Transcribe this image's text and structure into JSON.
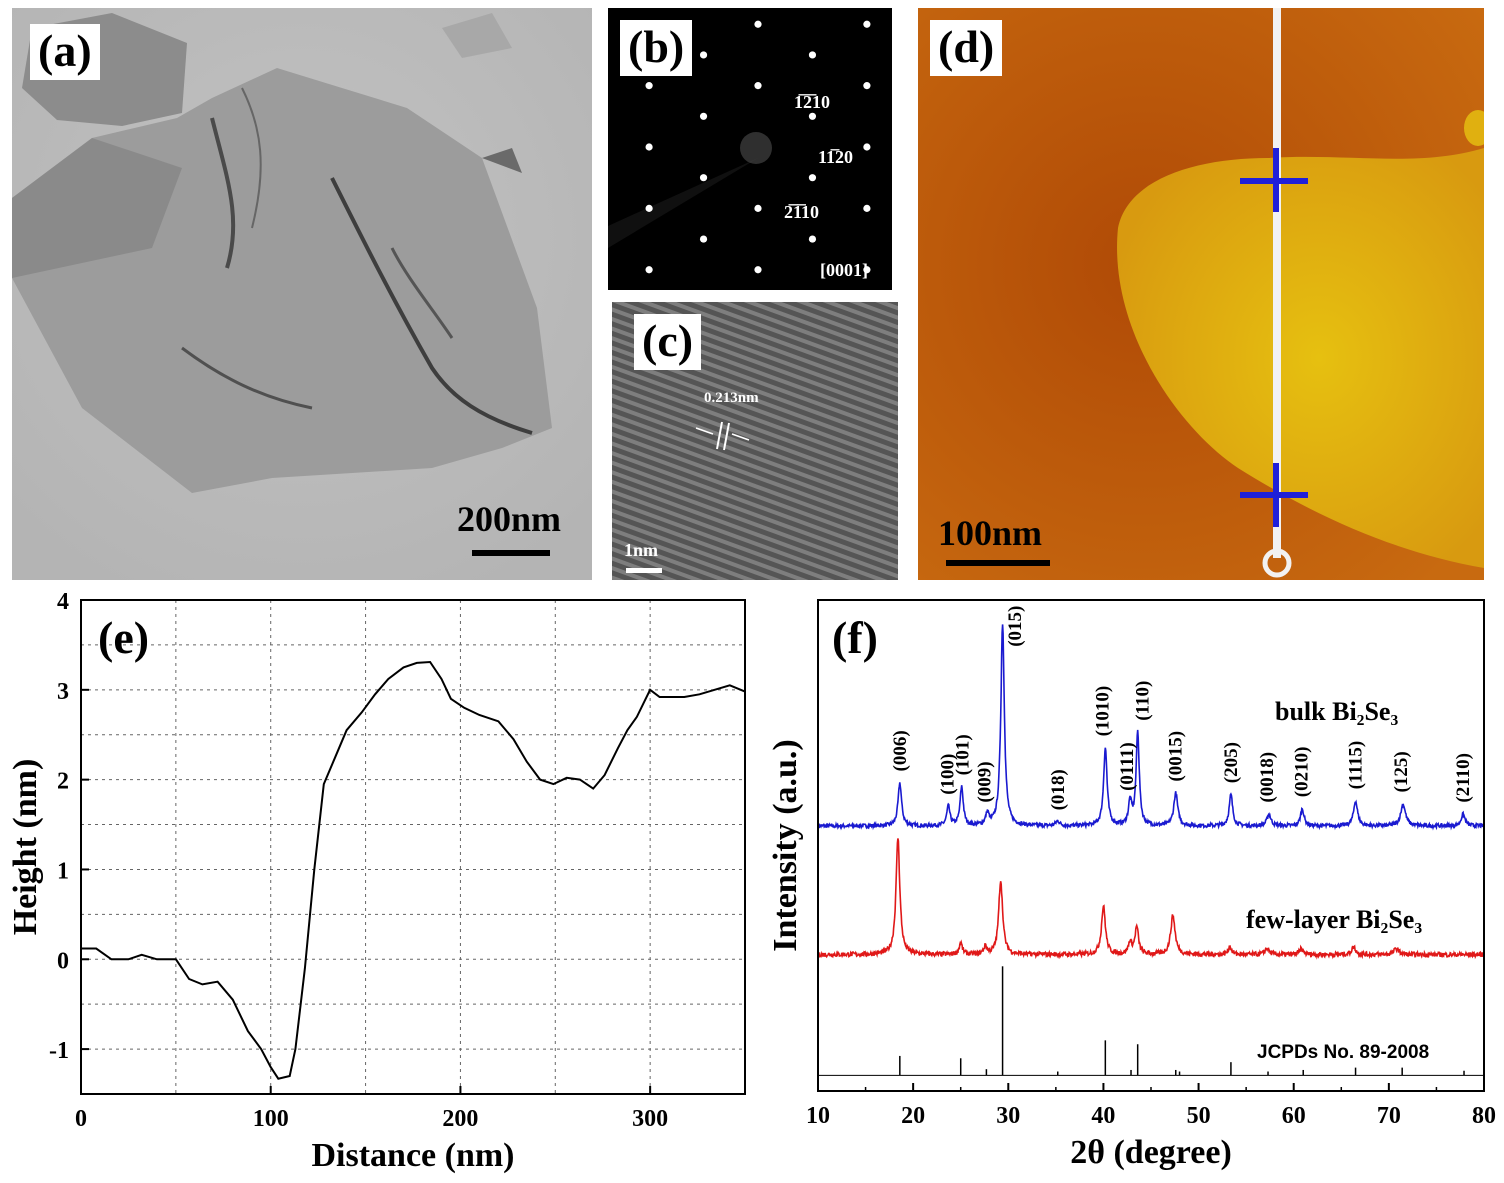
{
  "panels": {
    "a": {
      "label": "(a)",
      "scale_bar": "200nm"
    },
    "b": {
      "label": "(b)",
      "spots": [
        "1̅2̅10",
        "11̅20",
        "2̅1̅10"
      ],
      "zone_axis": "[0001]"
    },
    "c": {
      "label": "(c)",
      "d_spacing": "0.213nm",
      "scale_bar": "1nm"
    },
    "d": {
      "label": "(d)",
      "scale_bar": "100nm"
    },
    "e": {
      "label": "(e)"
    },
    "f": {
      "label": "(f)"
    }
  },
  "chart_data": [
    {
      "panel": "e",
      "type": "line",
      "xlabel": "Distance (nm)",
      "ylabel": "Height (nm)",
      "xlim": [
        0,
        350
      ],
      "ylim": [
        -1.5,
        4
      ],
      "xticks": [
        0,
        100,
        200,
        300
      ],
      "yticks": [
        -1,
        0,
        1,
        2,
        3,
        4
      ],
      "grid": true,
      "color": "#000000",
      "x": [
        0,
        8,
        16,
        25,
        32,
        40,
        50,
        57,
        64,
        72,
        80,
        88,
        95,
        100,
        104,
        110,
        113,
        118,
        123,
        128,
        135,
        140,
        148,
        155,
        162,
        170,
        177,
        184,
        190,
        195,
        202,
        210,
        220,
        228,
        235,
        242,
        249,
        256,
        263,
        270,
        276,
        283,
        288,
        293,
        300,
        305,
        310,
        318,
        326,
        334,
        342,
        350
      ],
      "y": [
        0.12,
        0.12,
        0.0,
        0.0,
        0.05,
        0.0,
        0.0,
        -0.22,
        -0.28,
        -0.25,
        -0.45,
        -0.8,
        -1.0,
        -1.2,
        -1.33,
        -1.3,
        -1.0,
        -0.1,
        1.0,
        1.95,
        2.3,
        2.55,
        2.75,
        2.95,
        3.12,
        3.25,
        3.3,
        3.31,
        3.12,
        2.9,
        2.8,
        2.72,
        2.65,
        2.45,
        2.2,
        2.0,
        1.95,
        2.02,
        2.0,
        1.9,
        2.05,
        2.35,
        2.55,
        2.7,
        3.0,
        2.92,
        2.92,
        2.92,
        2.95,
        3.0,
        3.05,
        2.98
      ]
    },
    {
      "panel": "f",
      "type": "line",
      "xlabel": "2θ (degree)",
      "ylabel": "Intensity (a.u.)",
      "xlim": [
        10,
        80
      ],
      "xticks": [
        10,
        20,
        30,
        40,
        50,
        60,
        70,
        80
      ],
      "grid": false,
      "series": [
        {
          "label": "bulk Bi₂Se₃",
          "color": "#1a1ad0",
          "baseline": 0.0,
          "peaks": [
            {
              "x": 18.6,
              "h": 0.55,
              "w": 0.22
            },
            {
              "x": 23.7,
              "h": 0.25,
              "w": 0.2
            },
            {
              "x": 25.1,
              "h": 0.5,
              "w": 0.2
            },
            {
              "x": 27.8,
              "h": 0.15,
              "w": 0.2
            },
            {
              "x": 29.4,
              "h": 2.6,
              "w": 0.22
            },
            {
              "x": 35.2,
              "h": 0.06,
              "w": 0.25
            },
            {
              "x": 40.2,
              "h": 1.0,
              "w": 0.22
            },
            {
              "x": 42.8,
              "h": 0.3,
              "w": 0.2
            },
            {
              "x": 43.6,
              "h": 1.2,
              "w": 0.2
            },
            {
              "x": 47.6,
              "h": 0.42,
              "w": 0.25
            },
            {
              "x": 53.4,
              "h": 0.4,
              "w": 0.22
            },
            {
              "x": 57.4,
              "h": 0.15,
              "w": 0.25
            },
            {
              "x": 60.9,
              "h": 0.22,
              "w": 0.22
            },
            {
              "x": 66.5,
              "h": 0.32,
              "w": 0.25
            },
            {
              "x": 71.5,
              "h": 0.28,
              "w": 0.3
            },
            {
              "x": 77.8,
              "h": 0.15,
              "w": 0.25
            }
          ]
        },
        {
          "label": "few-layer Bi₂Se₃",
          "color": "#e01818",
          "baseline": -1.65,
          "peaks": [
            {
              "x": 18.4,
              "h": 1.5,
              "w": 0.24
            },
            {
              "x": 25.0,
              "h": 0.15,
              "w": 0.2
            },
            {
              "x": 27.6,
              "h": 0.1,
              "w": 0.2
            },
            {
              "x": 29.2,
              "h": 0.95,
              "w": 0.25
            },
            {
              "x": 40.0,
              "h": 0.62,
              "w": 0.25
            },
            {
              "x": 42.8,
              "h": 0.15,
              "w": 0.22
            },
            {
              "x": 43.5,
              "h": 0.35,
              "w": 0.22
            },
            {
              "x": 47.3,
              "h": 0.5,
              "w": 0.28
            },
            {
              "x": 53.3,
              "h": 0.1,
              "w": 0.22
            },
            {
              "x": 57.2,
              "h": 0.08,
              "w": 0.25
            },
            {
              "x": 60.8,
              "h": 0.07,
              "w": 0.25
            },
            {
              "x": 66.3,
              "h": 0.1,
              "w": 0.25
            },
            {
              "x": 70.8,
              "h": 0.08,
              "w": 0.3
            }
          ]
        },
        {
          "label": "JCPDs No. 89-2008",
          "type": "stick",
          "color": "#000000",
          "baseline": -3.2,
          "sticks": [
            {
              "x": 18.6,
              "h": 0.25
            },
            {
              "x": 25.0,
              "h": 0.22
            },
            {
              "x": 27.7,
              "h": 0.08
            },
            {
              "x": 29.4,
              "h": 1.4
            },
            {
              "x": 35.2,
              "h": 0.05
            },
            {
              "x": 40.2,
              "h": 0.45
            },
            {
              "x": 42.9,
              "h": 0.07
            },
            {
              "x": 43.6,
              "h": 0.4
            },
            {
              "x": 47.6,
              "h": 0.07
            },
            {
              "x": 48.0,
              "h": 0.05
            },
            {
              "x": 53.4,
              "h": 0.17
            },
            {
              "x": 57.3,
              "h": 0.05
            },
            {
              "x": 61.0,
              "h": 0.07
            },
            {
              "x": 66.5,
              "h": 0.1
            },
            {
              "x": 71.4,
              "h": 0.1
            },
            {
              "x": 77.9,
              "h": 0.06
            }
          ]
        }
      ],
      "peak_labels": [
        {
          "text": "(006)",
          "x": 18.6,
          "y": 0.7
        },
        {
          "text": "(100)",
          "x": 23.6,
          "y": 0.4
        },
        {
          "text": "(101)",
          "x": 25.2,
          "y": 0.65
        },
        {
          "text": "(009)",
          "x": 27.5,
          "y": 0.3
        },
        {
          "text": "(015)",
          "x": 30.7,
          "y": 2.3
        },
        {
          "text": "(018)",
          "x": 35.2,
          "y": 0.2
        },
        {
          "text": "(1010)",
          "x": 39.9,
          "y": 1.15
        },
        {
          "text": "(0111)",
          "x": 42.5,
          "y": 0.45
        },
        {
          "text": "(110)",
          "x": 44.1,
          "y": 1.35
        },
        {
          "text": "(0015)",
          "x": 47.6,
          "y": 0.57
        },
        {
          "text": "(205)",
          "x": 53.4,
          "y": 0.55
        },
        {
          "text": "(0018)",
          "x": 57.2,
          "y": 0.3
        },
        {
          "text": "(0210)",
          "x": 60.8,
          "y": 0.37
        },
        {
          "text": "(1115)",
          "x": 66.5,
          "y": 0.47
        },
        {
          "text": "(125)",
          "x": 71.3,
          "y": 0.43
        },
        {
          "text": "(2110)",
          "x": 77.8,
          "y": 0.3
        }
      ]
    }
  ]
}
